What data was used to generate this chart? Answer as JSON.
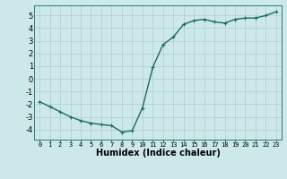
{
  "x": [
    0,
    1,
    2,
    3,
    4,
    5,
    6,
    7,
    8,
    9,
    10,
    11,
    12,
    13,
    14,
    15,
    16,
    17,
    18,
    19,
    20,
    21,
    22,
    23
  ],
  "y": [
    -1.8,
    -2.2,
    -2.6,
    -3.0,
    -3.3,
    -3.5,
    -3.6,
    -3.7,
    -4.2,
    -4.1,
    -2.3,
    0.9,
    2.7,
    3.3,
    4.3,
    4.6,
    4.7,
    4.5,
    4.4,
    4.7,
    4.8,
    4.8,
    5.0,
    5.3
  ],
  "xlabel": "Humidex (Indice chaleur)",
  "line_color": "#1e6b5a",
  "marker": "+",
  "marker_color": "#1e6b5a",
  "bg_color": "#cce8e8",
  "grid_color": "#b0cccc",
  "ylim": [
    -4.8,
    5.8
  ],
  "xlim": [
    -0.5,
    23.5
  ],
  "yticks": [
    -4,
    -3,
    -2,
    -1,
    0,
    1,
    2,
    3,
    4,
    5
  ],
  "xticks": [
    0,
    1,
    2,
    3,
    4,
    5,
    6,
    7,
    8,
    9,
    10,
    11,
    12,
    13,
    14,
    15,
    16,
    17,
    18,
    19,
    20,
    21,
    22,
    23
  ],
  "spine_color": "#2e7b6a",
  "xlabel_fontsize": 7,
  "xtick_fontsize": 5,
  "ytick_fontsize": 6,
  "linewidth": 1.0,
  "markersize": 3
}
